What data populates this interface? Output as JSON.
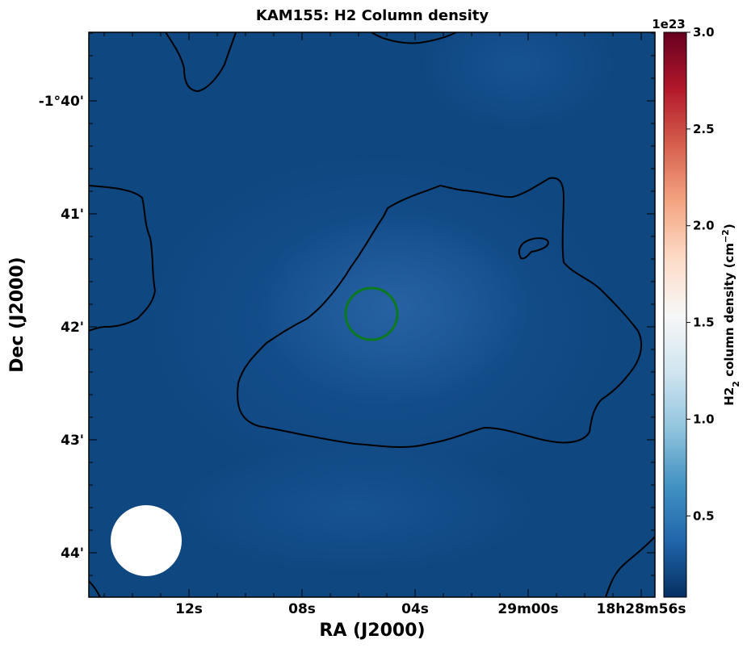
{
  "chart_data": {
    "type": "heatmap",
    "title": "KAM155: H2 Column density",
    "xlabel": "RA (J2000)",
    "ylabel": "Dec (J2000)",
    "x_ticks": [
      "12s",
      "08s",
      "04s",
      "29m00s",
      "18h28m56s"
    ],
    "y_ticks": [
      "-1°40'",
      "41'",
      "42'",
      "43'",
      "44'"
    ],
    "colorbar": {
      "label_main": "H2",
      "label_sub": "2",
      "label_rest": " column density (cm",
      "label_sup": "−2",
      "label_close": ")",
      "offset_text": "1e23",
      "ticks": [
        "0.5",
        "1.0",
        "1.5",
        "2.0",
        "2.5",
        "3.0"
      ],
      "tick_values": [
        0.5,
        1.0,
        1.5,
        2.0,
        2.5,
        3.0
      ],
      "vmin": 0.08,
      "vmax": 3.0,
      "colormap": "RdBu_r"
    },
    "grid": false,
    "markers": [
      "green circle (source position)",
      "white filled circle (beam)"
    ],
    "colors": {
      "marker": "#0b7a1f",
      "contour": "#000000",
      "beam": "#ffffff"
    }
  }
}
